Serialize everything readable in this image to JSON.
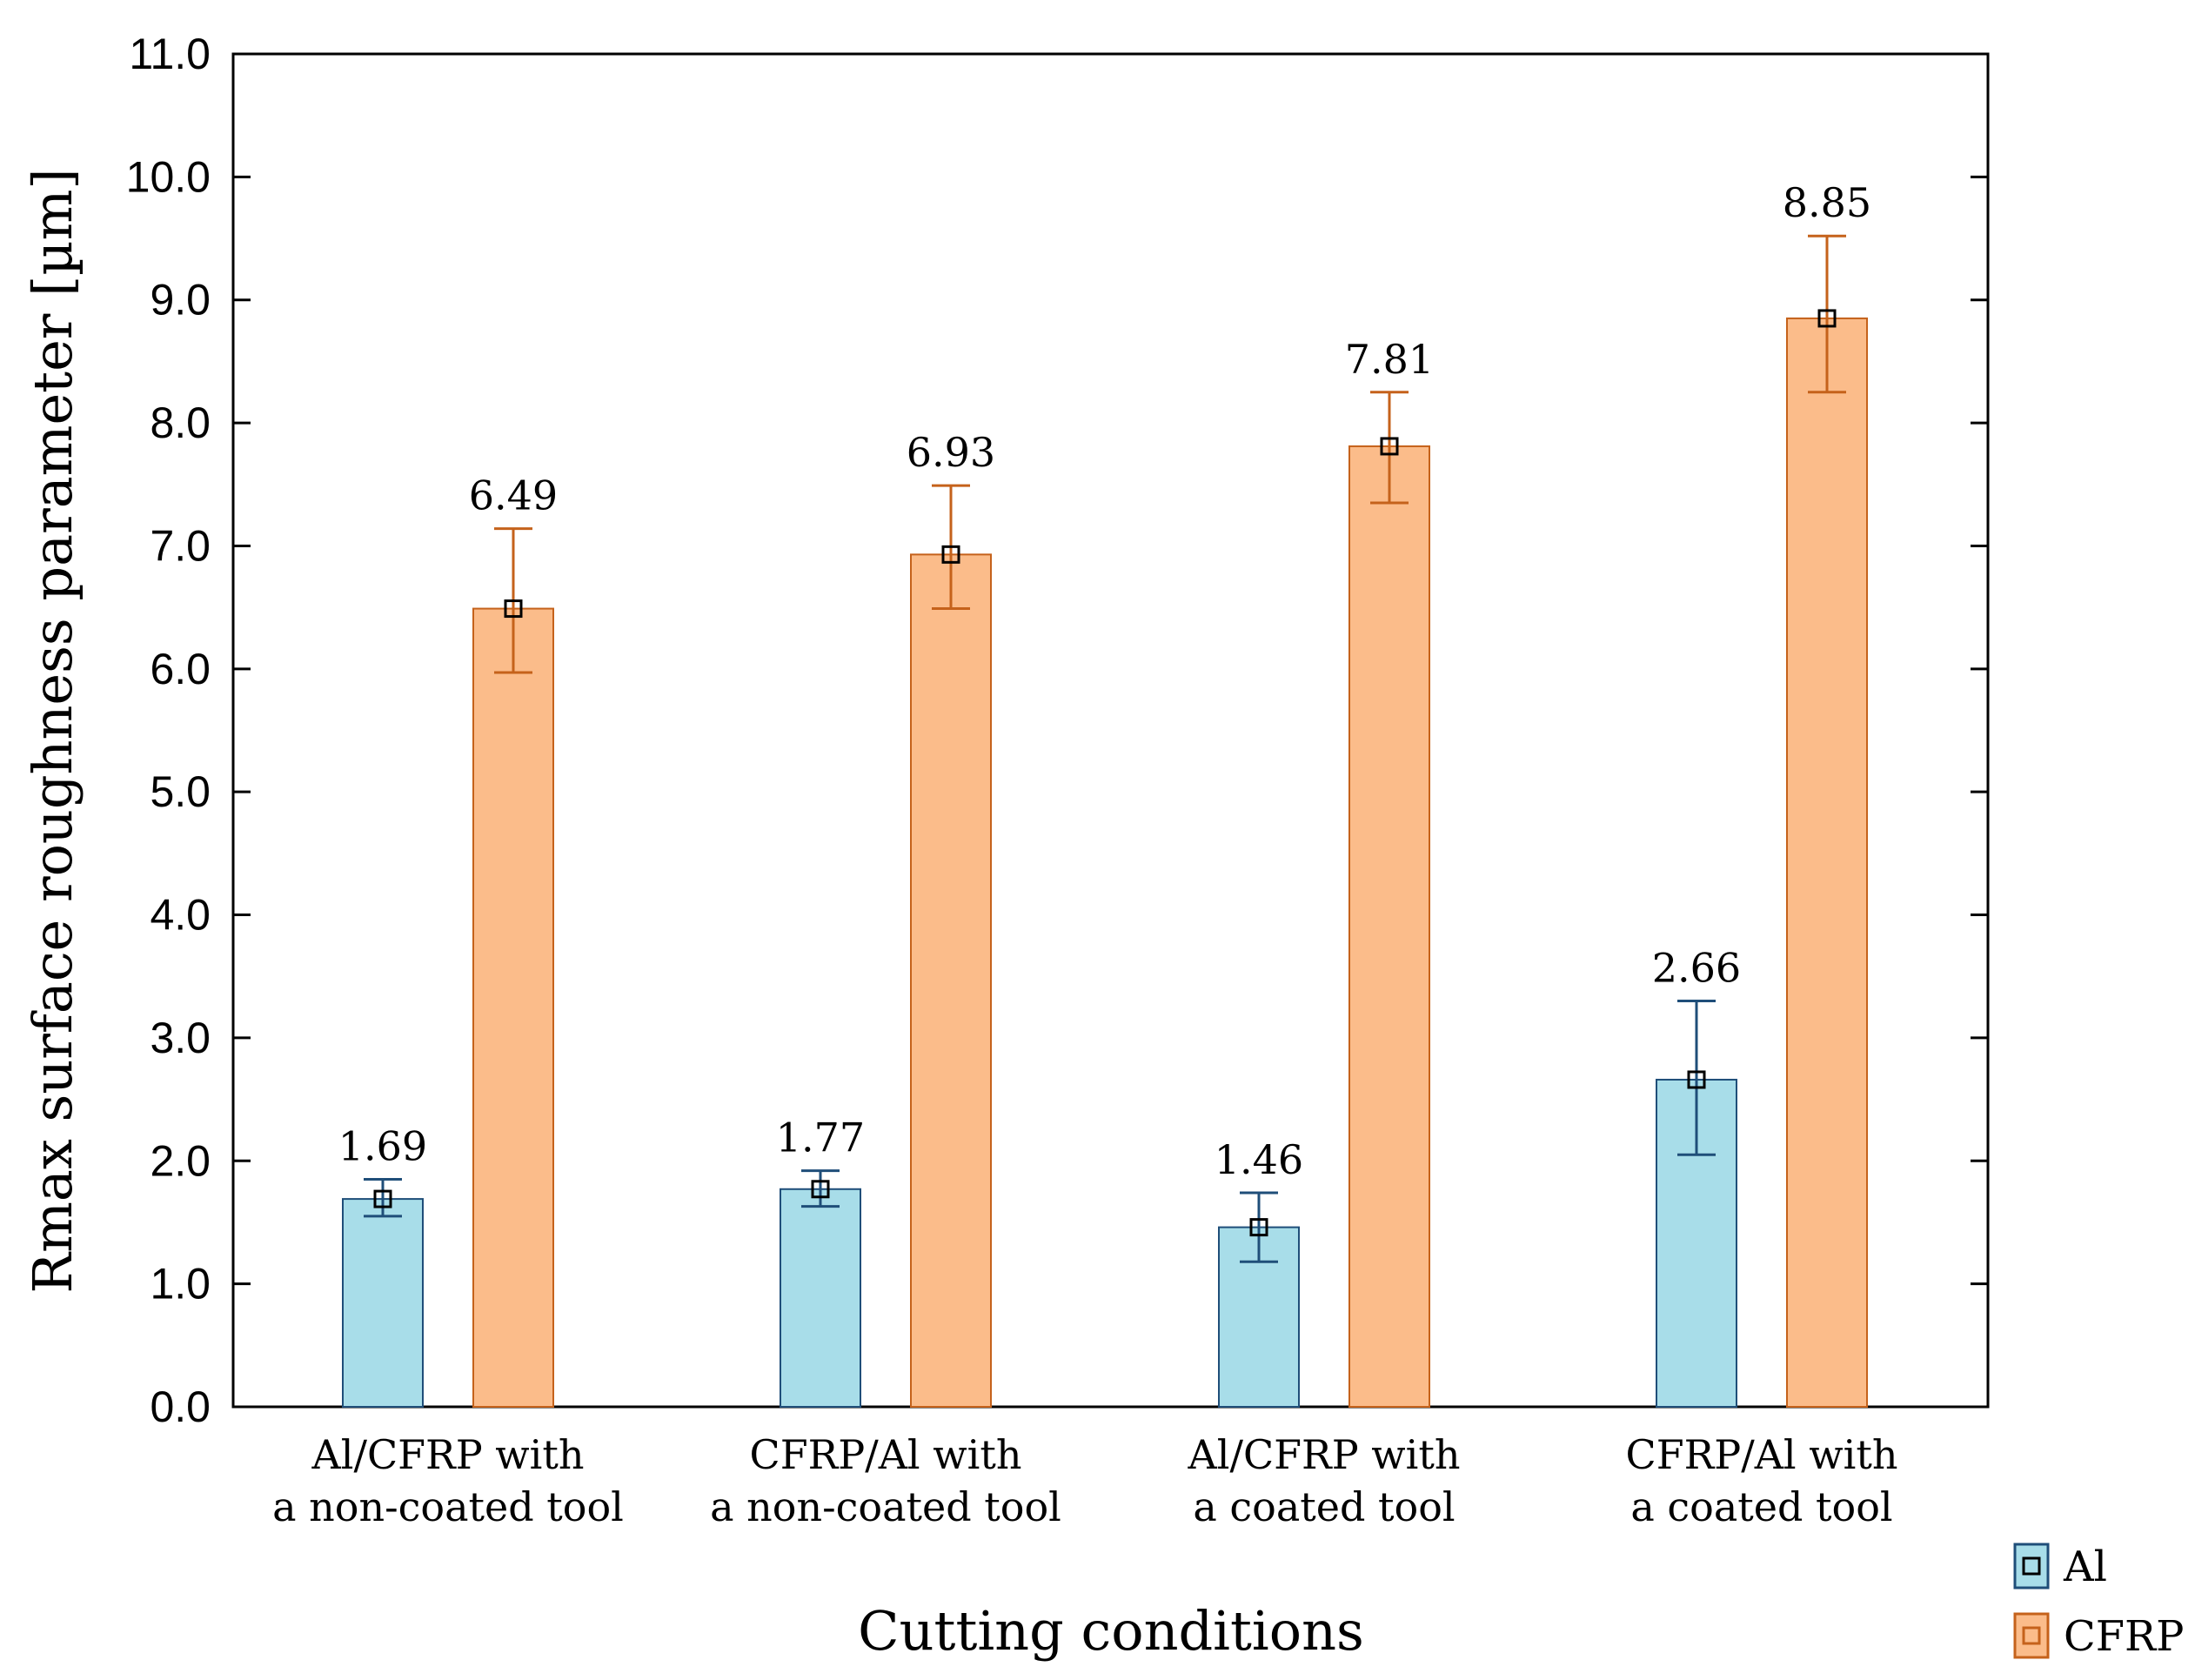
{
  "chart_data": {
    "type": "bar",
    "xlabel": "Cutting conditions",
    "ylabel": "Rmax surface roughness parameter [µm]",
    "ylim": [
      0,
      11
    ],
    "yticks": [
      "0.0",
      "1.0",
      "2.0",
      "3.0",
      "4.0",
      "5.0",
      "6.0",
      "7.0",
      "8.0",
      "9.0",
      "10.0",
      "11.0"
    ],
    "categories": [
      [
        "Al/CFRP with",
        "a non-coated tool"
      ],
      [
        "CFRP/Al with",
        "a non-coated tool"
      ],
      [
        "Al/CFRP with",
        "a coated tool"
      ],
      [
        "CFRP/Al with",
        "a coated tool"
      ]
    ],
    "series": [
      {
        "name": "Al",
        "color": "#a8dde9",
        "edge_color": "#1f4e79",
        "values": [
          1.69,
          1.77,
          1.46,
          2.66
        ],
        "labels": [
          "1.69",
          "1.77",
          "1.46",
          "2.66"
        ],
        "err_low": [
          1.55,
          1.63,
          1.18,
          2.05
        ],
        "err_high": [
          1.85,
          1.92,
          1.74,
          3.3
        ]
      },
      {
        "name": "CFRP",
        "color": "#fbbc8a",
        "edge_color": "#c5621b",
        "values": [
          6.49,
          6.93,
          7.81,
          8.85
        ],
        "labels": [
          "6.49",
          "6.93",
          "7.81",
          "8.85"
        ],
        "err_low": [
          5.97,
          6.49,
          7.35,
          8.25
        ],
        "err_high": [
          7.14,
          7.49,
          8.25,
          9.52
        ]
      }
    ],
    "grid": false,
    "legend_position": "bottom-right outside"
  }
}
